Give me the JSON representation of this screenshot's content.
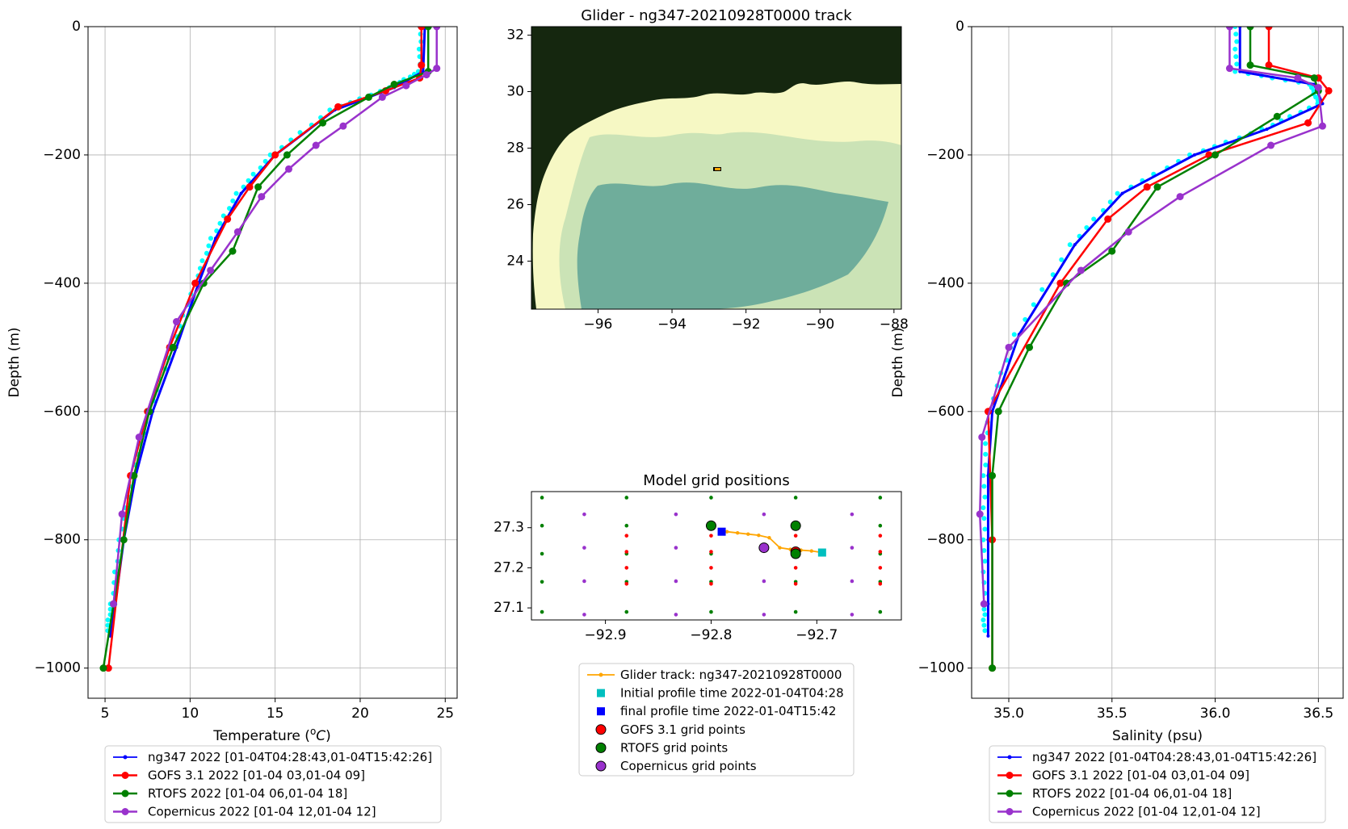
{
  "colors": {
    "glider": "#0000ff",
    "glider_light": "#00ffff",
    "gofs": "#ff0000",
    "rtofs": "#008000",
    "copernicus": "#9932cc",
    "track": "#ffa500",
    "initial": "#00bfbf",
    "final": "#0000ff",
    "land": "#15270f",
    "shelf": "#f6f8c4",
    "deep": "#6fad9b"
  },
  "temperature_panel": {
    "xlabel": "Temperature ($^{o}C$)",
    "xlabel_main": "Temperature (",
    "xlabel_sup": "o",
    "xlabel_unit": "C",
    "xlabel_close": ")",
    "ylabel": "Depth (m)",
    "legend": [
      "ng347 2022 [01-04T04:28:43,01-04T15:42:26]",
      "GOFS 3.1 2022 [01-04 03,01-04 09]",
      "RTOFS 2022 [01-04 06,01-04 18]",
      "Copernicus 2022 [01-04 12,01-04 12]"
    ]
  },
  "map_panel": {
    "title": "Glider - ng347-20210928T0000 track"
  },
  "grid_panel": {
    "title": "Model grid positions",
    "legend": [
      "Glider track: ng347-20210928T0000",
      "Initial profile time 2022-01-04T04:28",
      "final profile time 2022-01-04T15:42",
      "GOFS 3.1 grid points",
      "RTOFS grid points",
      "Copernicus grid points"
    ]
  },
  "salinity_panel": {
    "xlabel": "Salinity (psu)",
    "ylabel": "Depth (m)",
    "legend": [
      "ng347 2022 [01-04T04:28:43,01-04T15:42:26]",
      "GOFS 3.1 2022 [01-04 03,01-04 09]",
      "RTOFS 2022 [01-04 06,01-04 18]",
      "Copernicus 2022 [01-04 12,01-04 12]"
    ]
  },
  "chart_data": [
    {
      "type": "line",
      "xlabel": "Temperature ($^{o}C$)",
      "ylabel": "Depth (m)",
      "xlim": [
        4,
        25.7
      ],
      "ylim": [
        -1047,
        0
      ],
      "xticks": [
        5,
        10,
        15,
        20,
        25
      ],
      "yticks": [
        0,
        -200,
        -400,
        -600,
        -800,
        -1000
      ],
      "grid": true,
      "legend_position": "below",
      "series": [
        {
          "name": "ng347 2022 [01-04T04:28:43,01-04T15:42:26]",
          "x": [
            23.8,
            23.7,
            22.0,
            18.5,
            15.0,
            13.0,
            11.5,
            10.5,
            9.2,
            7.8,
            6.8,
            6.1,
            5.6,
            5.3
          ],
          "y": [
            0,
            -70,
            -95,
            -130,
            -200,
            -260,
            -330,
            -400,
            -500,
            -600,
            -700,
            -800,
            -900,
            -950
          ]
        },
        {
          "name": "GOFS 3.1 2022 [01-04 03,01-04 09]",
          "x": [
            23.6,
            23.6,
            23.5,
            21.5,
            18.7,
            15.0,
            13.5,
            12.2,
            10.3,
            8.8,
            7.5,
            6.5,
            5.2
          ],
          "y": [
            0,
            -60,
            -80,
            -100,
            -125,
            -200,
            -250,
            -300,
            -400,
            -500,
            -600,
            -700,
            -1000
          ]
        },
        {
          "name": "RTOFS 2022 [01-04 06,01-04 18]",
          "x": [
            24.0,
            24.0,
            22.0,
            20.5,
            17.8,
            15.7,
            14.0,
            12.5,
            10.8,
            9.0,
            7.6,
            6.7,
            6.1,
            5.5,
            4.9
          ],
          "y": [
            0,
            -70,
            -90,
            -110,
            -150,
            -200,
            -250,
            -350,
            -400,
            -500,
            -600,
            -700,
            -800,
            -900,
            -1000
          ]
        },
        {
          "name": "Copernicus 2022 [01-04 12,01-04 12]",
          "x": [
            24.5,
            24.5,
            23.9,
            22.7,
            21.3,
            19.0,
            17.4,
            15.8,
            14.2,
            12.8,
            11.2,
            9.2,
            7.0,
            6.0,
            5.5
          ],
          "y": [
            0,
            -65,
            -75,
            -92,
            -110,
            -155,
            -185,
            -222,
            -265,
            -320,
            -380,
            -460,
            -640,
            -760,
            -900
          ]
        }
      ]
    },
    {
      "type": "heatmap",
      "title": "Glider - ng347-20210928T0000 track",
      "xlim": [
        -97.8,
        -87.8
      ],
      "ylim": [
        22.3,
        32.3
      ],
      "xticks": [
        -96,
        -94,
        -92,
        -90,
        -88
      ],
      "yticks": [
        24,
        26,
        28,
        30,
        32
      ],
      "glider_position": {
        "lon": -92.75,
        "lat": 27.25
      }
    },
    {
      "type": "scatter",
      "title": "Model grid positions",
      "xlim": [
        -92.97,
        -92.62
      ],
      "ylim": [
        27.07,
        27.39
      ],
      "xticks": [
        -92.9,
        -92.8,
        -92.7
      ],
      "yticks": [
        27.1,
        27.2,
        27.3
      ],
      "legend_position": "below",
      "glider_track": {
        "name": "Glider track: ng347-20210928T0000",
        "x": [
          -92.785,
          -92.775,
          -92.765,
          -92.755,
          -92.745,
          -92.735,
          -92.725,
          -92.715,
          -92.705,
          -92.695
        ],
        "y": [
          27.29,
          27.287,
          27.284,
          27.281,
          27.275,
          27.25,
          27.246,
          27.244,
          27.242,
          27.238
        ]
      },
      "initial_profile": {
        "name": "Initial profile time 2022-01-04T04:28",
        "x": -92.695,
        "y": 27.238
      },
      "final_profile": {
        "name": "final profile time 2022-01-04T15:42",
        "x": -92.79,
        "y": 27.29
      },
      "gofs_points": {
        "x": [
          -92.88,
          -92.8,
          -92.72,
          -92.64
        ],
        "y": [
          27.16,
          27.2,
          27.24,
          27.28
        ]
      },
      "rtofs_points": {
        "x": [
          -92.96,
          -92.88,
          -92.8,
          -92.72,
          -92.64
        ],
        "y": [
          27.09,
          27.165,
          27.235,
          27.305,
          27.375
        ]
      },
      "copernicus_points": {
        "x": [
          -92.92,
          -92.8333,
          -92.75,
          -92.6667
        ],
        "y": [
          27.0833,
          27.1667,
          27.25,
          27.3333
        ]
      },
      "gofs_highlight": {
        "name": "GOFS 3.1 grid points",
        "x": [
          -92.72
        ],
        "y": [
          27.24
        ]
      },
      "rtofs_highlight": {
        "name": "RTOFS grid points",
        "x": [
          -92.8,
          -92.72,
          -92.72
        ],
        "y": [
          27.305,
          27.305,
          27.235
        ]
      },
      "copernicus_highlight": {
        "name": "Copernicus grid points",
        "x": [
          -92.75
        ],
        "y": [
          27.25
        ]
      }
    },
    {
      "type": "line",
      "xlabel": "Salinity (psu)",
      "ylabel": "Depth (m)",
      "xlim": [
        34.82,
        36.62
      ],
      "ylim": [
        -1047,
        0
      ],
      "xticks": [
        35.0,
        35.5,
        36.0,
        36.5
      ],
      "yticks": [
        0,
        -200,
        -400,
        -600,
        -800,
        -1000
      ],
      "grid": true,
      "legend_position": "below",
      "series": [
        {
          "name": "ng347 2022 [01-04T04:28:43,01-04T15:42:26]",
          "x": [
            36.12,
            36.12,
            36.48,
            36.52,
            36.25,
            35.9,
            35.55,
            35.32,
            35.05,
            34.92,
            34.9,
            34.9,
            34.9,
            34.9
          ],
          "y": [
            0,
            -70,
            -90,
            -120,
            -160,
            -200,
            -260,
            -340,
            -480,
            -600,
            -700,
            -800,
            -900,
            -950
          ]
        },
        {
          "name": "GOFS 3.1 2022 [01-04 03,01-04 09]",
          "x": [
            36.26,
            36.26,
            36.5,
            36.55,
            36.45,
            35.97,
            35.67,
            35.48,
            35.25,
            34.9,
            34.92,
            34.92
          ],
          "y": [
            0,
            -60,
            -80,
            -100,
            -150,
            -200,
            -250,
            -300,
            -400,
            -600,
            -800,
            -1000
          ]
        },
        {
          "name": "RTOFS 2022 [01-04 06,01-04 18]",
          "x": [
            36.17,
            36.17,
            36.48,
            36.5,
            36.3,
            36.0,
            35.72,
            35.5,
            35.28,
            35.1,
            34.95,
            34.92,
            34.92
          ],
          "y": [
            0,
            -60,
            -80,
            -100,
            -140,
            -200,
            -250,
            -350,
            -400,
            -500,
            -600,
            -700,
            -1000
          ]
        },
        {
          "name": "Copernicus 2022 [01-04 12,01-04 12]",
          "x": [
            36.07,
            36.07,
            36.4,
            36.5,
            36.52,
            36.27,
            35.83,
            35.58,
            35.35,
            35.0,
            34.87,
            34.86,
            34.88
          ],
          "y": [
            0,
            -65,
            -80,
            -95,
            -155,
            -185,
            -265,
            -320,
            -380,
            -500,
            -640,
            -760,
            -900
          ]
        }
      ]
    }
  ]
}
